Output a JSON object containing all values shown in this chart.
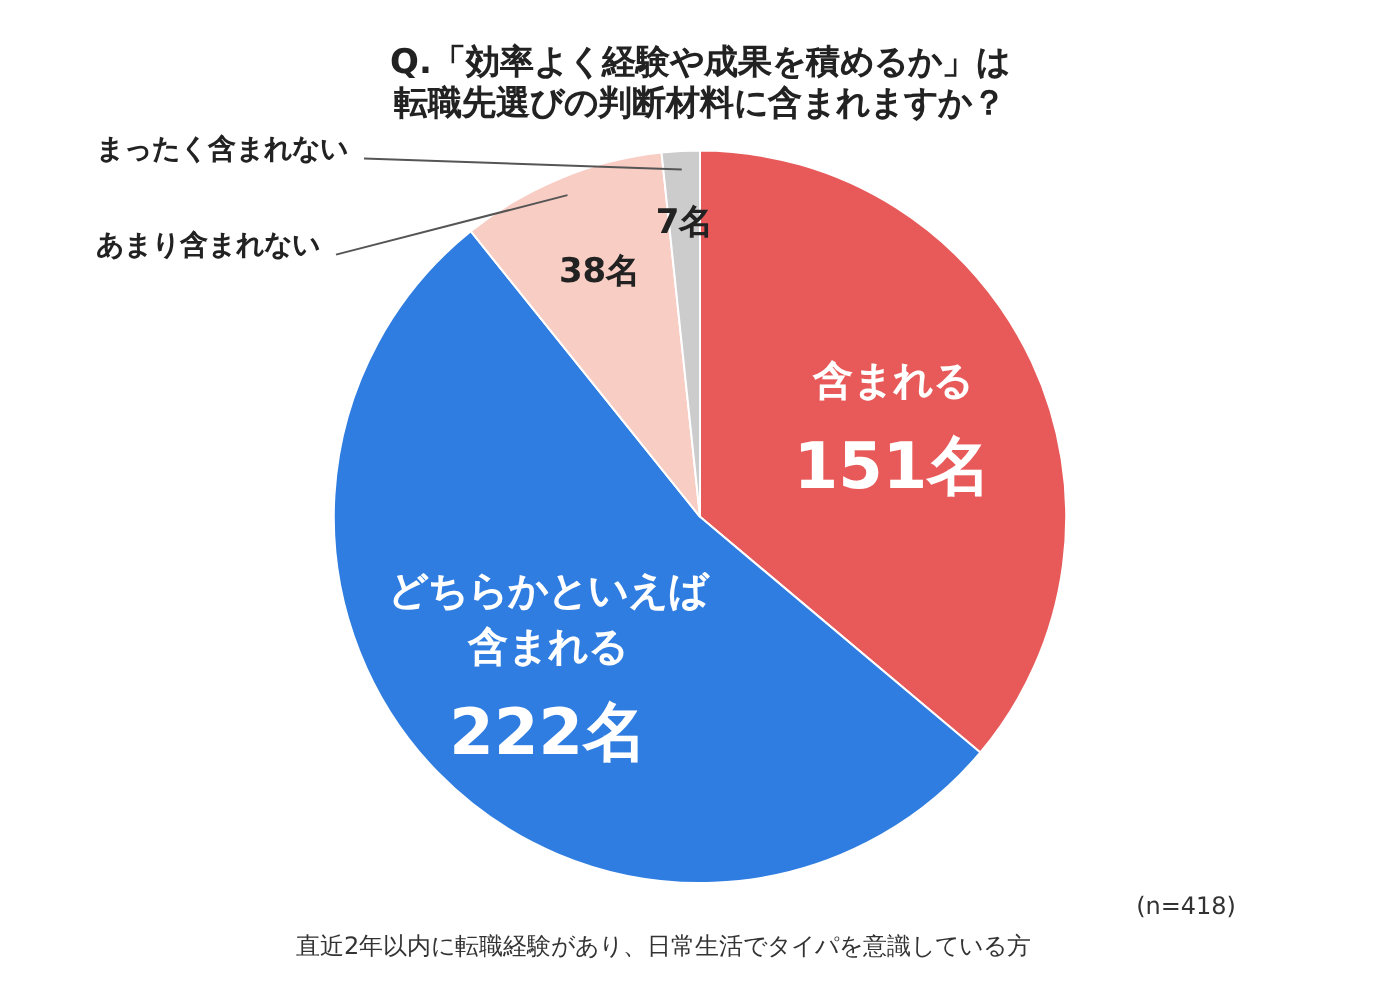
{
  "chart_data": {
    "type": "pie",
    "title": "Q.「効率よく経験や成果を積めるか」は転職先選びの判断材料に含まれますか？",
    "categories": [
      "含まれる",
      "どちらかといえば含まれる",
      "あまり含まれない",
      "まったく含まれない"
    ],
    "values": [
      151,
      222,
      38,
      7
    ],
    "value_labels": [
      "151名",
      "222名",
      "38名",
      "7名"
    ],
    "colors": [
      "#e85a5a",
      "#2f7de1",
      "#f8cdc4",
      "#cccccc"
    ],
    "annotations": [
      "(n=418)",
      "直近2年以内に転職経験があり、日常生活でタイパを意識している方"
    ],
    "legend": false
  }
}
